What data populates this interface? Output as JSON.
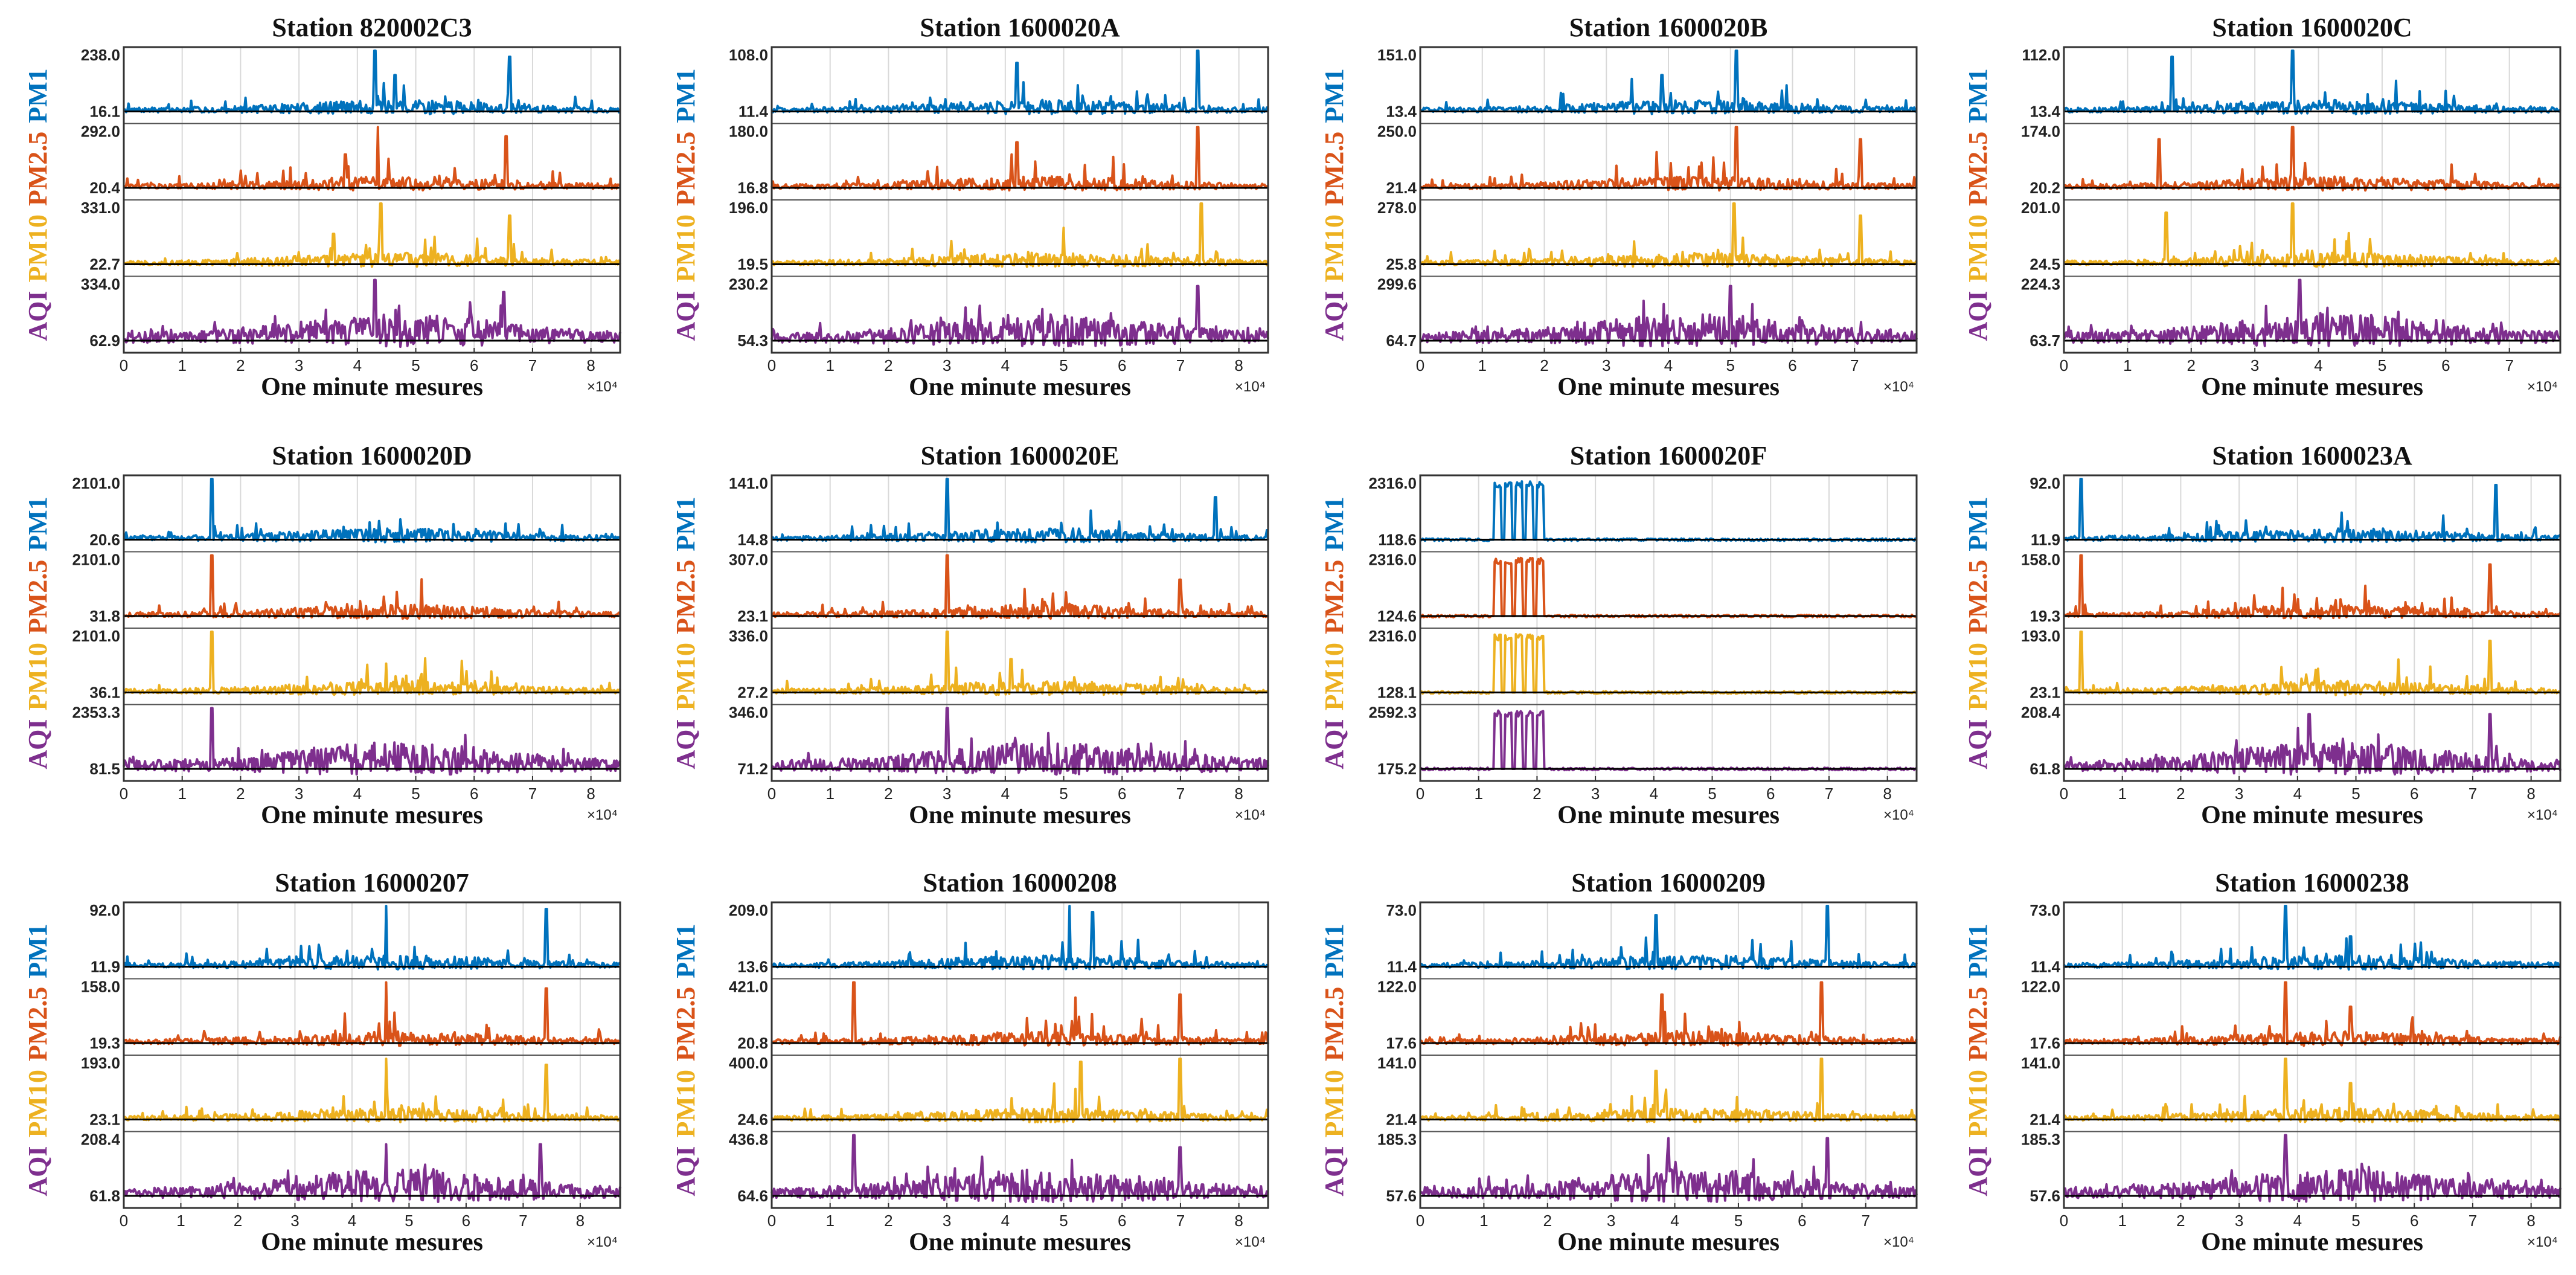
{
  "figure": {
    "xlabel": "One minute mesures",
    "x_multiplier": "×10⁴",
    "series_labels": [
      "PM1",
      "PM2.5",
      "PM10",
      "AQI"
    ],
    "colors": {
      "PM1": "#0072BD",
      "PM2.5": "#D95319",
      "PM10": "#EDB120",
      "AQI": "#7E2F8E",
      "mean_line": "#000000",
      "grid": "#d9d9d9",
      "frame": "#333333"
    }
  },
  "chart_data": [
    {
      "type": "line",
      "title": "Station 820002C3",
      "xlim": [
        0,
        8.5
      ],
      "xticks": [
        "0",
        "1",
        "2",
        "3",
        "4",
        "5",
        "6",
        "7",
        "8"
      ],
      "series": [
        {
          "name": "PM1",
          "max_label": "238.0",
          "mean_label": "16.1",
          "max": 238.0,
          "mean": 16.1,
          "spikes": [
            [
              4.3,
              1.0
            ],
            [
              6.6,
              0.9
            ],
            [
              4.65,
              0.6
            ]
          ]
        },
        {
          "name": "PM2.5",
          "max_label": "292.0",
          "mean_label": "20.4",
          "max": 292.0,
          "mean": 20.4,
          "spikes": [
            [
              4.35,
              1.0
            ],
            [
              6.55,
              0.85
            ],
            [
              3.8,
              0.55
            ]
          ]
        },
        {
          "name": "PM10",
          "max_label": "331.0",
          "mean_label": "22.7",
          "max": 331.0,
          "mean": 22.7,
          "spikes": [
            [
              4.4,
              1.0
            ],
            [
              6.6,
              0.8
            ],
            [
              3.6,
              0.5
            ]
          ]
        },
        {
          "name": "AQI",
          "max_label": "334.0",
          "mean_label": "62.9",
          "max": 334.0,
          "mean": 62.9,
          "spikes": [
            [
              4.3,
              1.0
            ],
            [
              6.5,
              0.8
            ]
          ]
        }
      ]
    },
    {
      "type": "line",
      "title": "Station 1600020A",
      "xlim": [
        0,
        8.5
      ],
      "xticks": [
        "0",
        "1",
        "2",
        "3",
        "4",
        "5",
        "6",
        "7",
        "8"
      ],
      "series": [
        {
          "name": "PM1",
          "max_label": "108.0",
          "mean_label": "11.4",
          "max": 108.0,
          "mean": 11.4,
          "spikes": [
            [
              7.3,
              1.0
            ],
            [
              4.2,
              0.8
            ]
          ]
        },
        {
          "name": "PM2.5",
          "max_label": "180.0",
          "mean_label": "16.8",
          "max": 180.0,
          "mean": 16.8,
          "spikes": [
            [
              7.3,
              1.0
            ],
            [
              4.2,
              0.75
            ]
          ]
        },
        {
          "name": "PM10",
          "max_label": "196.0",
          "mean_label": "19.5",
          "max": 196.0,
          "mean": 19.5,
          "spikes": [
            [
              7.35,
              1.0
            ],
            [
              5.0,
              0.6
            ]
          ]
        },
        {
          "name": "AQI",
          "max_label": "230.2",
          "mean_label": "54.3",
          "max": 230.2,
          "mean": 54.3,
          "spikes": [
            [
              7.3,
              0.9
            ]
          ]
        }
      ]
    },
    {
      "type": "line",
      "title": "Station 1600020B",
      "xlim": [
        0,
        8.0
      ],
      "xticks": [
        "0",
        "1",
        "2",
        "3",
        "4",
        "5",
        "6",
        "7"
      ],
      "series": [
        {
          "name": "PM1",
          "max_label": "151.0",
          "mean_label": "13.4",
          "max": 151.0,
          "mean": 13.4,
          "spikes": [
            [
              5.1,
              1.0
            ],
            [
              3.9,
              0.6
            ]
          ]
        },
        {
          "name": "PM2.5",
          "max_label": "250.0",
          "mean_label": "21.4",
          "max": 250.0,
          "mean": 21.4,
          "spikes": [
            [
              5.1,
              1.0
            ],
            [
              7.1,
              0.8
            ]
          ]
        },
        {
          "name": "PM10",
          "max_label": "278.0",
          "mean_label": "25.8",
          "max": 278.0,
          "mean": 25.8,
          "spikes": [
            [
              5.05,
              1.0
            ],
            [
              7.1,
              0.8
            ]
          ]
        },
        {
          "name": "AQI",
          "max_label": "299.6",
          "mean_label": "64.7",
          "max": 299.6,
          "mean": 64.7,
          "spikes": [
            [
              5.0,
              0.9
            ]
          ]
        }
      ]
    },
    {
      "type": "line",
      "title": "Station 1600020C",
      "xlim": [
        0,
        7.8
      ],
      "xticks": [
        "0",
        "1",
        "2",
        "3",
        "4",
        "5",
        "6",
        "7"
      ],
      "series": [
        {
          "name": "PM1",
          "max_label": "112.0",
          "mean_label": "13.4",
          "max": 112.0,
          "mean": 13.4,
          "spikes": [
            [
              3.6,
              1.0
            ],
            [
              1.7,
              0.9
            ]
          ]
        },
        {
          "name": "PM2.5",
          "max_label": "174.0",
          "mean_label": "20.2",
          "max": 174.0,
          "mean": 20.2,
          "spikes": [
            [
              3.6,
              1.0
            ],
            [
              1.5,
              0.8
            ]
          ]
        },
        {
          "name": "PM10",
          "max_label": "201.0",
          "mean_label": "24.5",
          "max": 201.0,
          "mean": 24.5,
          "spikes": [
            [
              3.6,
              1.0
            ],
            [
              1.6,
              0.85
            ]
          ]
        },
        {
          "name": "AQI",
          "max_label": "224.3",
          "mean_label": "63.7",
          "max": 224.3,
          "mean": 63.7,
          "spikes": [
            [
              3.7,
              1.0
            ]
          ]
        }
      ]
    },
    {
      "type": "line",
      "title": "Station 1600020D",
      "xlim": [
        0,
        8.5
      ],
      "xticks": [
        "0",
        "1",
        "2",
        "3",
        "4",
        "5",
        "6",
        "7",
        "8"
      ],
      "series": [
        {
          "name": "PM1",
          "max_label": "2101.0",
          "mean_label": "20.6",
          "max": 2101.0,
          "mean": 20.6,
          "spikes": [
            [
              1.5,
              1.0
            ]
          ]
        },
        {
          "name": "PM2.5",
          "max_label": "2101.0",
          "mean_label": "31.8",
          "max": 2101.0,
          "mean": 31.8,
          "spikes": [
            [
              1.5,
              1.0
            ]
          ]
        },
        {
          "name": "PM10",
          "max_label": "2101.0",
          "mean_label": "36.1",
          "max": 2101.0,
          "mean": 36.1,
          "spikes": [
            [
              1.5,
              1.0
            ]
          ]
        },
        {
          "name": "AQI",
          "max_label": "2353.3",
          "mean_label": "81.5",
          "max": 2353.3,
          "mean": 81.5,
          "spikes": [
            [
              1.5,
              1.0
            ]
          ]
        }
      ]
    },
    {
      "type": "line",
      "title": "Station 1600020E",
      "xlim": [
        0,
        8.5
      ],
      "xticks": [
        "0",
        "1",
        "2",
        "3",
        "4",
        "5",
        "6",
        "7",
        "8"
      ],
      "series": [
        {
          "name": "PM1",
          "max_label": "141.0",
          "mean_label": "14.8",
          "max": 141.0,
          "mean": 14.8,
          "spikes": [
            [
              3.0,
              1.0
            ],
            [
              7.6,
              0.7
            ]
          ]
        },
        {
          "name": "PM2.5",
          "max_label": "307.0",
          "mean_label": "23.1",
          "max": 307.0,
          "mean": 23.1,
          "spikes": [
            [
              3.0,
              1.0
            ],
            [
              7.0,
              0.6
            ]
          ]
        },
        {
          "name": "PM10",
          "max_label": "336.0",
          "mean_label": "27.2",
          "max": 336.0,
          "mean": 27.2,
          "spikes": [
            [
              3.0,
              1.0
            ],
            [
              4.1,
              0.55
            ]
          ]
        },
        {
          "name": "AQI",
          "max_label": "346.0",
          "mean_label": "71.2",
          "max": 346.0,
          "mean": 71.2,
          "spikes": [
            [
              3.0,
              1.0
            ]
          ]
        }
      ]
    },
    {
      "type": "line",
      "title": "Station 1600020F",
      "xlim": [
        0,
        8.5
      ],
      "xticks": [
        "0",
        "1",
        "2",
        "3",
        "4",
        "5",
        "6",
        "7",
        "8"
      ],
      "series": [
        {
          "name": "PM1",
          "max_label": "2316.0",
          "mean_label": "118.6",
          "max": 2316.0,
          "mean": 118.6,
          "block": [
            1.2,
            2.15
          ]
        },
        {
          "name": "PM2.5",
          "max_label": "2316.0",
          "mean_label": "124.6",
          "max": 2316.0,
          "mean": 124.6,
          "block": [
            1.2,
            2.15
          ]
        },
        {
          "name": "PM10",
          "max_label": "2316.0",
          "mean_label": "128.1",
          "max": 2316.0,
          "mean": 128.1,
          "block": [
            1.2,
            2.15
          ]
        },
        {
          "name": "AQI",
          "max_label": "2592.3",
          "mean_label": "175.2",
          "max": 2592.3,
          "mean": 175.2,
          "block": [
            1.2,
            2.15
          ]
        }
      ]
    },
    {
      "type": "line",
      "title": "Station 1600023A",
      "xlim": [
        0,
        8.5
      ],
      "xticks": [
        "0",
        "1",
        "2",
        "3",
        "4",
        "5",
        "6",
        "7",
        "8"
      ],
      "series": [
        {
          "name": "PM1",
          "max_label": "92.0",
          "mean_label": "11.9",
          "max": 92.0,
          "mean": 11.9,
          "spikes": [
            [
              0.3,
              1.0
            ],
            [
              7.4,
              0.9
            ]
          ]
        },
        {
          "name": "PM2.5",
          "max_label": "158.0",
          "mean_label": "19.3",
          "max": 158.0,
          "mean": 19.3,
          "spikes": [
            [
              0.3,
              1.0
            ],
            [
              7.3,
              0.85
            ]
          ]
        },
        {
          "name": "PM10",
          "max_label": "193.0",
          "mean_label": "23.1",
          "max": 193.0,
          "mean": 23.1,
          "spikes": [
            [
              0.3,
              1.0
            ],
            [
              7.3,
              0.85
            ]
          ]
        },
        {
          "name": "AQI",
          "max_label": "208.4",
          "mean_label": "61.8",
          "max": 208.4,
          "mean": 61.8,
          "spikes": [
            [
              4.2,
              0.9
            ],
            [
              7.3,
              0.9
            ]
          ]
        }
      ]
    },
    {
      "type": "line",
      "title": "Station 16000207",
      "xlim": [
        0,
        8.7
      ],
      "xticks": [
        "0",
        "1",
        "2",
        "3",
        "4",
        "5",
        "6",
        "7",
        "8"
      ],
      "series": [
        {
          "name": "PM1",
          "max_label": "92.0",
          "mean_label": "11.9",
          "max": 92.0,
          "mean": 11.9,
          "spikes": [
            [
              4.6,
              1.0
            ],
            [
              7.4,
              0.95
            ]
          ]
        },
        {
          "name": "PM2.5",
          "max_label": "158.0",
          "mean_label": "19.3",
          "max": 158.0,
          "mean": 19.3,
          "spikes": [
            [
              4.6,
              1.0
            ],
            [
              7.4,
              0.9
            ]
          ]
        },
        {
          "name": "PM10",
          "max_label": "193.0",
          "mean_label": "23.1",
          "max": 193.0,
          "mean": 23.1,
          "spikes": [
            [
              4.6,
              1.0
            ],
            [
              7.4,
              0.9
            ]
          ]
        },
        {
          "name": "AQI",
          "max_label": "208.4",
          "mean_label": "61.8",
          "max": 208.4,
          "mean": 61.8,
          "spikes": [
            [
              4.6,
              0.85
            ],
            [
              7.3,
              0.85
            ]
          ]
        }
      ]
    },
    {
      "type": "line",
      "title": "Station 16000208",
      "xlim": [
        0,
        8.5
      ],
      "xticks": [
        "0",
        "1",
        "2",
        "3",
        "4",
        "5",
        "6",
        "7",
        "8"
      ],
      "series": [
        {
          "name": "PM1",
          "max_label": "209.0",
          "mean_label": "13.6",
          "max": 209.0,
          "mean": 13.6,
          "spikes": [
            [
              5.1,
              1.0
            ],
            [
              5.5,
              0.9
            ]
          ]
        },
        {
          "name": "PM2.5",
          "max_label": "421.0",
          "mean_label": "20.8",
          "max": 421.0,
          "mean": 20.8,
          "spikes": [
            [
              1.4,
              1.0
            ],
            [
              7.0,
              0.8
            ],
            [
              5.2,
              0.75
            ]
          ]
        },
        {
          "name": "PM10",
          "max_label": "400.0",
          "mean_label": "24.6",
          "max": 400.0,
          "mean": 24.6,
          "spikes": [
            [
              7.0,
              1.0
            ],
            [
              5.3,
              0.95
            ]
          ]
        },
        {
          "name": "AQI",
          "max_label": "436.8",
          "mean_label": "64.6",
          "max": 436.8,
          "mean": 64.6,
          "spikes": [
            [
              1.4,
              1.0
            ],
            [
              7.0,
              0.8
            ]
          ]
        }
      ]
    },
    {
      "type": "line",
      "title": "Station 16000209",
      "xlim": [
        0,
        7.8
      ],
      "xticks": [
        "0",
        "1",
        "2",
        "3",
        "4",
        "5",
        "6",
        "7"
      ],
      "series": [
        {
          "name": "PM1",
          "max_label": "73.0",
          "mean_label": "11.4",
          "max": 73.0,
          "mean": 11.4,
          "spikes": [
            [
              6.4,
              1.0
            ],
            [
              3.7,
              0.85
            ]
          ]
        },
        {
          "name": "PM2.5",
          "max_label": "122.0",
          "mean_label": "17.6",
          "max": 122.0,
          "mean": 17.6,
          "spikes": [
            [
              6.3,
              1.0
            ],
            [
              3.8,
              0.8
            ]
          ]
        },
        {
          "name": "PM10",
          "max_label": "141.0",
          "mean_label": "21.4",
          "max": 141.0,
          "mean": 21.4,
          "spikes": [
            [
              6.3,
              1.0
            ],
            [
              3.7,
              0.8
            ]
          ]
        },
        {
          "name": "AQI",
          "max_label": "185.3",
          "mean_label": "57.6",
          "max": 185.3,
          "mean": 57.6,
          "spikes": [
            [
              3.9,
              0.95
            ],
            [
              6.4,
              0.95
            ]
          ]
        }
      ]
    },
    {
      "type": "line",
      "title": "Station 16000238",
      "xlim": [
        0,
        8.5
      ],
      "xticks": [
        "0",
        "1",
        "2",
        "3",
        "4",
        "5",
        "6",
        "7",
        "8"
      ],
      "series": [
        {
          "name": "PM1",
          "max_label": "73.0",
          "mean_label": "11.4",
          "max": 73.0,
          "mean": 11.4,
          "spikes": [
            [
              3.8,
              1.0
            ],
            [
              4.9,
              0.5
            ]
          ]
        },
        {
          "name": "PM2.5",
          "max_label": "122.0",
          "mean_label": "17.6",
          "max": 122.0,
          "mean": 17.6,
          "spikes": [
            [
              3.8,
              1.0
            ],
            [
              4.9,
              0.6
            ]
          ]
        },
        {
          "name": "PM10",
          "max_label": "141.0",
          "mean_label": "21.4",
          "max": 141.0,
          "mean": 21.4,
          "spikes": [
            [
              3.8,
              1.0
            ],
            [
              4.9,
              0.6
            ]
          ]
        },
        {
          "name": "AQI",
          "max_label": "185.3",
          "mean_label": "57.6",
          "max": 185.3,
          "mean": 57.6,
          "spikes": [
            [
              3.8,
              1.0
            ],
            [
              4.9,
              0.4
            ]
          ]
        }
      ]
    }
  ]
}
